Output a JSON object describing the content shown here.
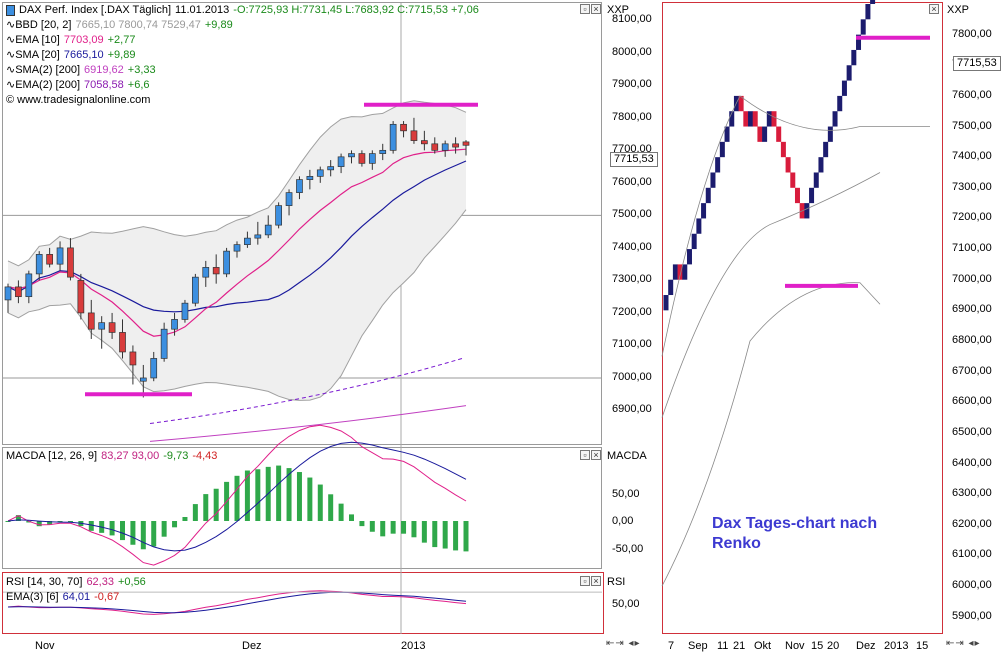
{
  "left_chart": {
    "title": "DAX Perf. Index [.DAX  Täglich]",
    "date": "11.01.2013",
    "ohlc": "-O:7725,93 H:7731,45 L:7683,92 C:7715,53 +7,06",
    "indicators": [
      {
        "name": "BBD [20, 2]",
        "values": "7665,10 7800,74 7529,47",
        "change": "+9,89",
        "color": "#9a9a9a"
      },
      {
        "name": "EMA [10]",
        "values": "7703,09",
        "change": "+2,77",
        "color": "#e0208a"
      },
      {
        "name": "SMA [20]",
        "values": "7665,10",
        "change": "+9,89",
        "color": "#1a1a9c"
      },
      {
        "name": "SMA(2) [200]",
        "values": "6919,62",
        "change": "+3,33",
        "color": "#c040c0"
      },
      {
        "name": "EMA(2) [200]",
        "values": "7058,58",
        "change": "+6,6",
        "color": "#8a1ab0"
      }
    ],
    "copyright": "© www.tradesignalonline.com",
    "axis_label": "XXP",
    "price_ticks": [
      "8100,00",
      "8000,00",
      "7900,00",
      "7800,00",
      "7700,00",
      "7600,00",
      "7500,00",
      "7400,00",
      "7300,00",
      "7200,00",
      "7100,00",
      "7000,00",
      "6900,00"
    ],
    "last_price": "7715,53",
    "macd": {
      "label": "MACDA [12, 26, 9]",
      "values": "83,27 93,00",
      "v1": "-9,73",
      "v2": "-4,43",
      "axis_label": "MACDA",
      "ticks": [
        "50,00",
        "0,00",
        "-50,00"
      ]
    },
    "rsi": {
      "label": "RSI [14, 30, 70]",
      "value": "62,33",
      "change": "+0,56",
      "ema_label": "EMA(3) [6]",
      "ema_value": "64,01",
      "ema_change": "-0,67",
      "axis_label": "RSI",
      "ticks": [
        "50,00"
      ]
    },
    "x_ticks": [
      "Nov",
      "Dez",
      "2013"
    ],
    "colors": {
      "up": "#3c8fe0",
      "down": "#d83c3c",
      "magenta": "#e020c8",
      "bb": "#a0a0a0",
      "ema10": "#e0208a",
      "sma20": "#1a1a9c"
    }
  },
  "right_chart": {
    "axis_label": "XXP",
    "price_ticks": [
      "7800,00",
      "7700,00",
      "7600,00",
      "7500,00",
      "7400,00",
      "7300,00",
      "7200,00",
      "7100,00",
      "7000,00",
      "6900,00",
      "6800,00",
      "6700,00",
      "6600,00",
      "6500,00",
      "6400,00",
      "6300,00",
      "6200,00",
      "6100,00",
      "6000,00",
      "5900,00"
    ],
    "last_price": "7715,53",
    "annotation_line1": "Dax Tages-chart nach",
    "annotation_line2": "Renko",
    "x_ticks": [
      "7",
      "Sep",
      "11",
      "21",
      "Okt",
      "Nov",
      "15",
      "20",
      "Dez",
      "2013",
      "15"
    ],
    "colors": {
      "up": "#1c1c6e",
      "down": "#d81c3c"
    }
  },
  "chart_data": [
    {
      "type": "candlestick",
      "title": "DAX Perf. Index [.DAX  Täglich]",
      "x_labels": [
        "Nov",
        "Dez",
        "2013"
      ],
      "ylim": [
        6800,
        8150
      ],
      "candles": [
        [
          7240,
          7290,
          7200,
          7280
        ],
        [
          7280,
          7300,
          7230,
          7250
        ],
        [
          7250,
          7330,
          7230,
          7320
        ],
        [
          7320,
          7390,
          7300,
          7380
        ],
        [
          7380,
          7400,
          7340,
          7350
        ],
        [
          7350,
          7420,
          7330,
          7400
        ],
        [
          7400,
          7430,
          7300,
          7310
        ],
        [
          7300,
          7320,
          7180,
          7200
        ],
        [
          7200,
          7240,
          7120,
          7150
        ],
        [
          7150,
          7190,
          7090,
          7170
        ],
        [
          7170,
          7200,
          7120,
          7140
        ],
        [
          7140,
          7180,
          7060,
          7080
        ],
        [
          7080,
          7100,
          6980,
          7040
        ],
        [
          6990,
          7040,
          6940,
          7000
        ],
        [
          7000,
          7080,
          6990,
          7060
        ],
        [
          7060,
          7170,
          7050,
          7150
        ],
        [
          7150,
          7200,
          7130,
          7180
        ],
        [
          7180,
          7240,
          7170,
          7230
        ],
        [
          7230,
          7320,
          7220,
          7310
        ],
        [
          7310,
          7360,
          7280,
          7340
        ],
        [
          7340,
          7380,
          7290,
          7320
        ],
        [
          7320,
          7400,
          7310,
          7390
        ],
        [
          7390,
          7420,
          7370,
          7410
        ],
        [
          7410,
          7450,
          7400,
          7430
        ],
        [
          7430,
          7480,
          7410,
          7440
        ],
        [
          7440,
          7500,
          7430,
          7470
        ],
        [
          7470,
          7540,
          7460,
          7530
        ],
        [
          7530,
          7580,
          7500,
          7570
        ],
        [
          7570,
          7620,
          7550,
          7610
        ],
        [
          7610,
          7640,
          7580,
          7620
        ],
        [
          7620,
          7650,
          7600,
          7640
        ],
        [
          7640,
          7670,
          7620,
          7650
        ],
        [
          7650,
          7690,
          7630,
          7680
        ],
        [
          7680,
          7700,
          7660,
          7690
        ],
        [
          7690,
          7700,
          7650,
          7660
        ],
        [
          7660,
          7700,
          7640,
          7690
        ],
        [
          7690,
          7720,
          7670,
          7700
        ],
        [
          7700,
          7790,
          7690,
          7780
        ],
        [
          7780,
          7790,
          7740,
          7760
        ],
        [
          7760,
          7800,
          7720,
          7730
        ],
        [
          7730,
          7760,
          7700,
          7720
        ],
        [
          7720,
          7740,
          7690,
          7700
        ],
        [
          7700,
          7730,
          7680,
          7720
        ],
        [
          7720,
          7740,
          7690,
          7710
        ],
        [
          7725.93,
          7731.45,
          7683.92,
          7715.53
        ]
      ],
      "support_level": 6950,
      "resistance_level": 7840
    },
    {
      "type": "renko",
      "title": "Dax Tages-chart nach Renko",
      "x_labels": [
        "7",
        "Sep",
        "11",
        "21",
        "Okt",
        "Nov",
        "15",
        "20",
        "Dez",
        "2013",
        "15"
      ],
      "ylim": [
        5850,
        7900
      ],
      "brick_size": 50,
      "bricks": [
        "u",
        "u",
        "u",
        "d",
        "u",
        "u",
        "u",
        "u",
        "u",
        "u",
        "u",
        "u",
        "u",
        "u",
        "u",
        "u",
        "d",
        "d",
        "u",
        "d",
        "d",
        "u",
        "u",
        "d",
        "d",
        "d",
        "d",
        "d",
        "d",
        "d",
        "u",
        "u",
        "u",
        "u",
        "u",
        "u",
        "u",
        "u",
        "u",
        "u",
        "u",
        "u",
        "u",
        "u",
        "u",
        "u",
        "u"
      ],
      "start_price": 6900,
      "support_level": 6980,
      "resistance_level": 7790
    }
  ]
}
